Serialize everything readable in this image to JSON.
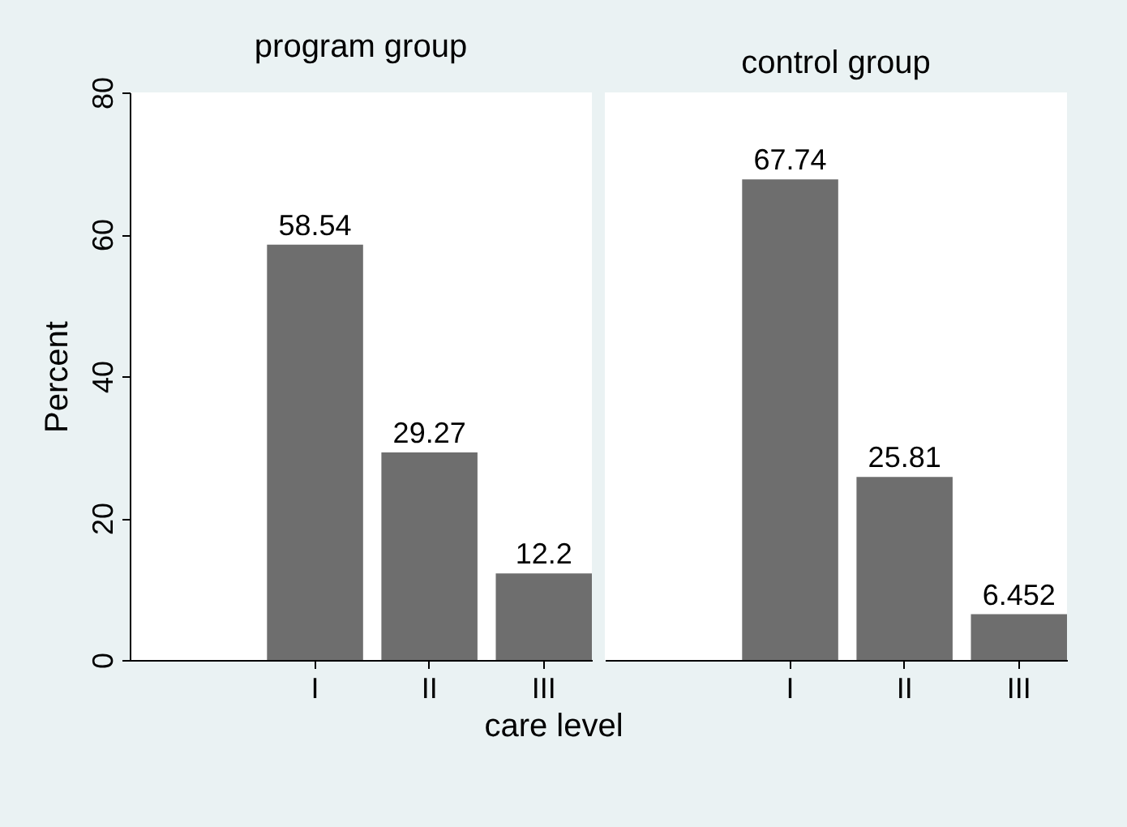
{
  "chart_data": [
    {
      "type": "bar",
      "title": "program group",
      "ylabel": "Percent",
      "xlabel": "care level",
      "categories": [
        "I",
        "II",
        "III"
      ],
      "values": [
        58.54,
        29.27,
        12.2
      ],
      "color": "#6e6e6e",
      "ylim": [
        0,
        80
      ],
      "yticks": [
        0,
        20,
        40,
        60,
        80
      ],
      "data_labels": true
    },
    {
      "type": "bar",
      "title": "control group",
      "categories": [
        "I",
        "II",
        "III"
      ],
      "values": [
        67.74,
        25.81,
        6.452
      ],
      "color": "#6e6e6e",
      "ylim": [
        0,
        80
      ],
      "yticks": [
        0,
        20,
        40,
        60,
        80
      ],
      "data_labels": true,
      "tick_labels": "x"
    }
  ]
}
